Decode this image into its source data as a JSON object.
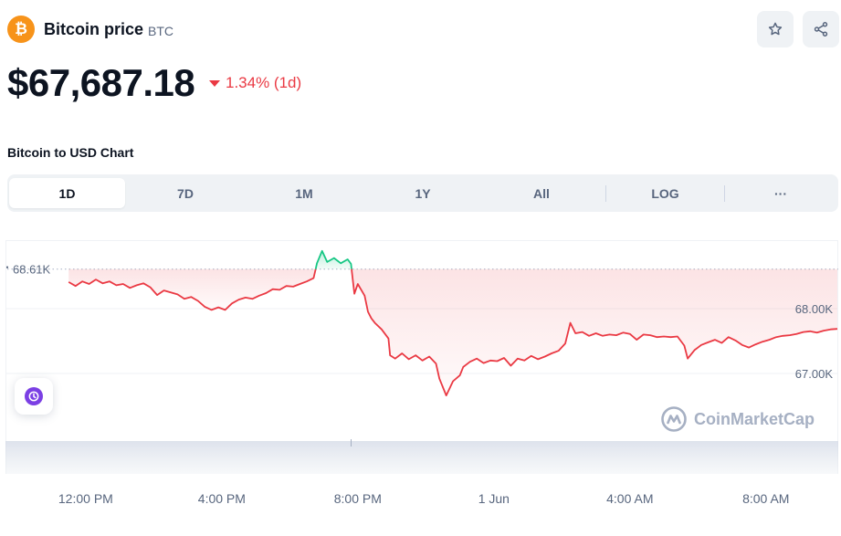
{
  "coin": {
    "logo_glyph": "₿",
    "name": "Bitcoin price",
    "symbol": "BTC",
    "brand_color": "#f7931a"
  },
  "actions": {
    "watchlist_icon": "star-icon",
    "share_icon": "share-icon"
  },
  "price": {
    "value": "$67,687.18",
    "change": "1.34% (1d)",
    "change_direction": "down",
    "change_color": "#ea3943"
  },
  "chart_section": {
    "title": "Bitcoin to USD Chart"
  },
  "range_tabs": [
    {
      "label": "1D",
      "active": true
    },
    {
      "label": "7D",
      "active": false
    },
    {
      "label": "1M",
      "active": false
    },
    {
      "label": "1Y",
      "active": false
    },
    {
      "label": "All",
      "active": false
    },
    {
      "label": "LOG",
      "active": false
    },
    {
      "label": "···",
      "active": false
    }
  ],
  "watermark": {
    "text": "CoinMarketCap"
  },
  "history_icon": "history-icon",
  "chart_data": {
    "type": "line",
    "title": "",
    "xlabel": "",
    "ylabel": "",
    "ylim": [
      66300,
      68900
    ],
    "reference_line": {
      "label": "68.61K",
      "value": 68610
    },
    "y_ticks": [
      {
        "label": "68.00K",
        "value": 68000
      },
      {
        "label": "67.00K",
        "value": 67000
      }
    ],
    "x_ticks": [
      {
        "label": "12:00 PM",
        "t": 1.5
      },
      {
        "label": "4:00 PM",
        "t": 5.5
      },
      {
        "label": "8:00 PM",
        "t": 9.5
      },
      {
        "label": "1 Jun",
        "t": 13.5
      },
      {
        "label": "4:00 AM",
        "t": 17.5
      },
      {
        "label": "8:00 AM",
        "t": 21.5
      }
    ],
    "x_range": [
      0,
      23.6
    ],
    "up_color": "#16c784",
    "down_color": "#ea3943",
    "series": [
      {
        "values": [
          [
            1.0,
            68410
          ],
          [
            1.2,
            68350
          ],
          [
            1.4,
            68420
          ],
          [
            1.6,
            68380
          ],
          [
            1.8,
            68450
          ],
          [
            2.0,
            68390
          ],
          [
            2.2,
            68420
          ],
          [
            2.4,
            68360
          ],
          [
            2.6,
            68380
          ],
          [
            2.8,
            68320
          ],
          [
            3.0,
            68360
          ],
          [
            3.2,
            68390
          ],
          [
            3.4,
            68330
          ],
          [
            3.6,
            68210
          ],
          [
            3.8,
            68280
          ],
          [
            4.0,
            68250
          ],
          [
            4.2,
            68220
          ],
          [
            4.4,
            68150
          ],
          [
            4.6,
            68180
          ],
          [
            4.8,
            68120
          ],
          [
            5.0,
            68030
          ],
          [
            5.2,
            67980
          ],
          [
            5.4,
            68020
          ],
          [
            5.6,
            67980
          ],
          [
            5.8,
            68080
          ],
          [
            6.0,
            68140
          ],
          [
            6.2,
            68170
          ],
          [
            6.4,
            68150
          ],
          [
            6.6,
            68200
          ],
          [
            6.8,
            68240
          ],
          [
            7.0,
            68300
          ],
          [
            7.2,
            68290
          ],
          [
            7.4,
            68350
          ],
          [
            7.6,
            68340
          ],
          [
            7.8,
            68380
          ],
          [
            8.0,
            68420
          ],
          [
            8.2,
            68470
          ],
          [
            8.3,
            68700
          ],
          [
            8.45,
            68890
          ],
          [
            8.6,
            68720
          ],
          [
            8.8,
            68780
          ],
          [
            9.0,
            68700
          ],
          [
            9.2,
            68760
          ],
          [
            9.3,
            68690
          ],
          [
            9.4,
            68230
          ],
          [
            9.5,
            68380
          ],
          [
            9.7,
            68200
          ],
          [
            9.8,
            67950
          ],
          [
            9.9,
            67850
          ],
          [
            10.0,
            67780
          ],
          [
            10.2,
            67680
          ],
          [
            10.4,
            67540
          ],
          [
            10.45,
            67280
          ],
          [
            10.6,
            67230
          ],
          [
            10.8,
            67310
          ],
          [
            11.0,
            67220
          ],
          [
            11.2,
            67280
          ],
          [
            11.4,
            67200
          ],
          [
            11.6,
            67260
          ],
          [
            11.8,
            67150
          ],
          [
            11.9,
            66920
          ],
          [
            12.1,
            66660
          ],
          [
            12.3,
            66880
          ],
          [
            12.5,
            66970
          ],
          [
            12.6,
            67100
          ],
          [
            12.8,
            67180
          ],
          [
            13.0,
            67230
          ],
          [
            13.2,
            67160
          ],
          [
            13.4,
            67200
          ],
          [
            13.6,
            67190
          ],
          [
            13.8,
            67240
          ],
          [
            14.0,
            67120
          ],
          [
            14.2,
            67230
          ],
          [
            14.4,
            67200
          ],
          [
            14.6,
            67270
          ],
          [
            14.8,
            67220
          ],
          [
            15.0,
            67260
          ],
          [
            15.2,
            67310
          ],
          [
            15.4,
            67350
          ],
          [
            15.6,
            67460
          ],
          [
            15.75,
            67780
          ],
          [
            15.9,
            67620
          ],
          [
            16.1,
            67640
          ],
          [
            16.3,
            67580
          ],
          [
            16.5,
            67620
          ],
          [
            16.7,
            67580
          ],
          [
            16.9,
            67600
          ],
          [
            17.1,
            67590
          ],
          [
            17.3,
            67630
          ],
          [
            17.5,
            67610
          ],
          [
            17.7,
            67520
          ],
          [
            17.9,
            67600
          ],
          [
            18.1,
            67590
          ],
          [
            18.3,
            67560
          ],
          [
            18.5,
            67570
          ],
          [
            18.7,
            67560
          ],
          [
            18.9,
            67570
          ],
          [
            19.1,
            67430
          ],
          [
            19.2,
            67230
          ],
          [
            19.4,
            67360
          ],
          [
            19.6,
            67440
          ],
          [
            19.8,
            67480
          ],
          [
            20.0,
            67520
          ],
          [
            20.2,
            67470
          ],
          [
            20.4,
            67560
          ],
          [
            20.6,
            67510
          ],
          [
            20.8,
            67440
          ],
          [
            21.0,
            67400
          ],
          [
            21.2,
            67450
          ],
          [
            21.4,
            67490
          ],
          [
            21.6,
            67520
          ],
          [
            21.8,
            67560
          ],
          [
            22.0,
            67580
          ],
          [
            22.2,
            67590
          ],
          [
            22.4,
            67610
          ],
          [
            22.6,
            67640
          ],
          [
            22.8,
            67650
          ],
          [
            23.0,
            67630
          ],
          [
            23.2,
            67660
          ],
          [
            23.4,
            67680
          ],
          [
            23.6,
            67687
          ]
        ]
      }
    ]
  }
}
